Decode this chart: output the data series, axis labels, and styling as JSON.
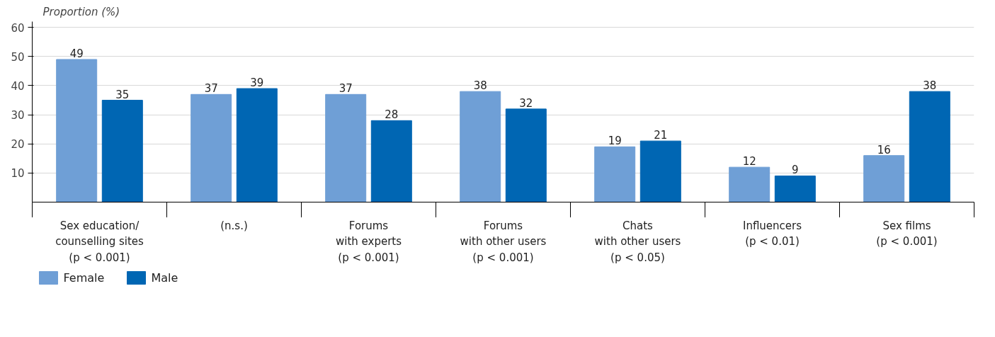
{
  "chart_data": {
    "type": "bar",
    "ylabel": "Proportion (%)",
    "categories": [
      "Sex education/\ncounselling sites\n(p < 0.001)",
      "(n.s.)",
      "Forums\nwith experts\n(p < 0.001)",
      "Forums\nwith other users\n(p < 0.001)",
      "Chats\nwith other users\n(p < 0.05)",
      "Influencers\n(p < 0.01)",
      "Sex films\n(p < 0.001)"
    ],
    "series": [
      {
        "name": "Female",
        "color": "#6f9fd6",
        "values": [
          49,
          37,
          37,
          38,
          19,
          12,
          16
        ]
      },
      {
        "name": "Male",
        "color": "#0066b3",
        "values": [
          35,
          39,
          28,
          32,
          21,
          9,
          38
        ]
      }
    ],
    "ylim": [
      0,
      62
    ],
    "yticks": [
      10,
      20,
      30,
      40,
      50,
      60
    ],
    "grid": "y",
    "legend": "bottom left",
    "data_labels": true
  }
}
